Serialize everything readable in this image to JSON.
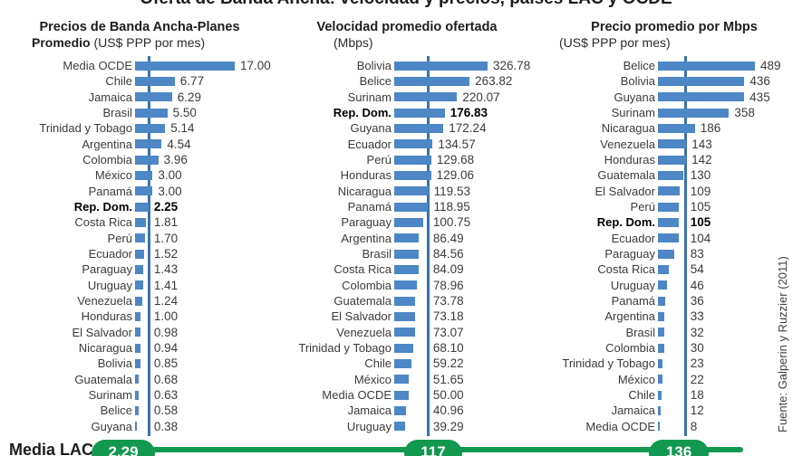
{
  "title": {
    "text": "Oferta de Banda Ancha: velocidad y precios, países LAC y OCDE"
  },
  "source": "Fuente: Galperin y Ruzzier (2011)",
  "colors": {
    "bar_blue": "#4d87c5",
    "reference_line_blue": "#3a72b2",
    "media_lac_green": "#12994f",
    "text_dark": "#1d1d1b"
  },
  "media_lac": {
    "label": "Media LAC",
    "values": [
      "2.29",
      "117",
      "136"
    ]
  },
  "chart_data": [
    {
      "type": "bar",
      "orientation": "horizontal",
      "title_line1": "Precios de Banda Ancha-Planes",
      "title_line2_bold": "Promedio",
      "title_line2_unit": " (US$ PPP por mes)",
      "categories": [
        "Media OCDE",
        "Chile",
        "Jamaica",
        "Brasil",
        "Trinidad y Tobago",
        "Argentina",
        "Colombia",
        "México",
        "Panamá",
        "Rep. Dom.",
        "Costa Rica",
        "Perú",
        "Ecuador",
        "Paraguay",
        "Uruguay",
        "Venezuela",
        "Honduras",
        "El Salvador",
        "Nicaragua",
        "Bolivia",
        "Guatemala",
        "Surinam",
        "Belice",
        "Guyana"
      ],
      "values": [
        17.0,
        6.77,
        6.29,
        5.5,
        5.14,
        4.54,
        3.96,
        3.0,
        3.0,
        2.25,
        1.81,
        1.7,
        1.52,
        1.43,
        1.41,
        1.24,
        1.0,
        0.98,
        0.94,
        0.85,
        0.68,
        0.63,
        0.58,
        0.38
      ],
      "value_labels": [
        "17.00",
        "6.77",
        "6.29",
        "5.50",
        "5.14",
        "4.54",
        "3.96",
        "3.00",
        "3.00",
        "2.25",
        "1.81",
        "1.70",
        "1.52",
        "1.43",
        "1.41",
        "1.24",
        "1.00",
        "0.98",
        "0.94",
        "0.85",
        "0.68",
        "0.63",
        "0.58",
        "0.38"
      ],
      "highlight_category": "Rep. Dom.",
      "reference": {
        "label": "Media LAC",
        "value": 2.29
      },
      "xmax": 17.0
    },
    {
      "type": "bar",
      "orientation": "horizontal",
      "title_line1": "Velocidad promedio ofertada",
      "title_line2_bold": "",
      "title_line2_unit": "(Mbps)",
      "categories": [
        "Bolivia",
        "Belice",
        "Surinam",
        "Rep. Dom.",
        "Guyana",
        "Ecuador",
        "Perú",
        "Honduras",
        "Nicaragua",
        "Panamá",
        "Paraguay",
        "Argentina",
        "Brasil",
        "Costa Rica",
        "Colombia",
        "Guatemala",
        "El Salvador",
        "Venezuela",
        "Trinidad y Tobago",
        "Chile",
        "México",
        "Media OCDE",
        "Jamaica",
        "Uruguay"
      ],
      "values": [
        326.78,
        263.82,
        220.07,
        176.83,
        172.24,
        134.57,
        129.68,
        129.06,
        119.53,
        118.95,
        100.75,
        86.49,
        84.56,
        84.09,
        78.96,
        73.78,
        73.18,
        73.07,
        68.1,
        59.22,
        51.65,
        50.0,
        40.96,
        39.29
      ],
      "value_labels": [
        "326.78",
        "263.82",
        "220.07",
        "176.83",
        "172.24",
        "134.57",
        "129.68",
        "129.06",
        "119.53",
        "118.95",
        "100.75",
        "86.49",
        "84.56",
        "84.09",
        "78.96",
        "73.78",
        "73.18",
        "73.07",
        "68.10",
        "59.22",
        "51.65",
        "50.00",
        "40.96",
        "39.29"
      ],
      "highlight_category": "Rep. Dom.",
      "reference": {
        "label": "Media LAC",
        "value": 117
      },
      "xmax": 326.78
    },
    {
      "type": "bar",
      "orientation": "horizontal",
      "title_line1": "Precio promedio por Mbps",
      "title_line2_bold": "",
      "title_line2_unit": "(US$ PPP por mes)",
      "categories": [
        "Belice",
        "Bolivia",
        "Guyana",
        "Surinam",
        "Nicaragua",
        "Venezuela",
        "Honduras",
        "Guatemala",
        "El Salvador",
        "Perú",
        "Rep. Dom.",
        "Ecuador",
        "Paraguay",
        "Costa Rica",
        "Uruguay",
        "Panamá",
        "Argentina",
        "Brasil",
        "Colombia",
        "Trinidad y Tobago",
        "México",
        "Chile",
        "Jamaica",
        "Media OCDE"
      ],
      "values": [
        489,
        436,
        435,
        358,
        186,
        143,
        142,
        130,
        109,
        105,
        105,
        104,
        83,
        54,
        46,
        36,
        33,
        32,
        30,
        23,
        22,
        18,
        12,
        8
      ],
      "value_labels": [
        "489",
        "436",
        "435",
        "358",
        "186",
        "143",
        "142",
        "130",
        "109",
        "105",
        "105",
        "104",
        "83",
        "54",
        "46",
        "36",
        "33",
        "32",
        "30",
        "23",
        "22",
        "18",
        "12",
        "8"
      ],
      "highlight_category": "Rep. Dom.",
      "reference": {
        "label": "Media LAC",
        "value": 136
      },
      "xmax": 489
    }
  ]
}
